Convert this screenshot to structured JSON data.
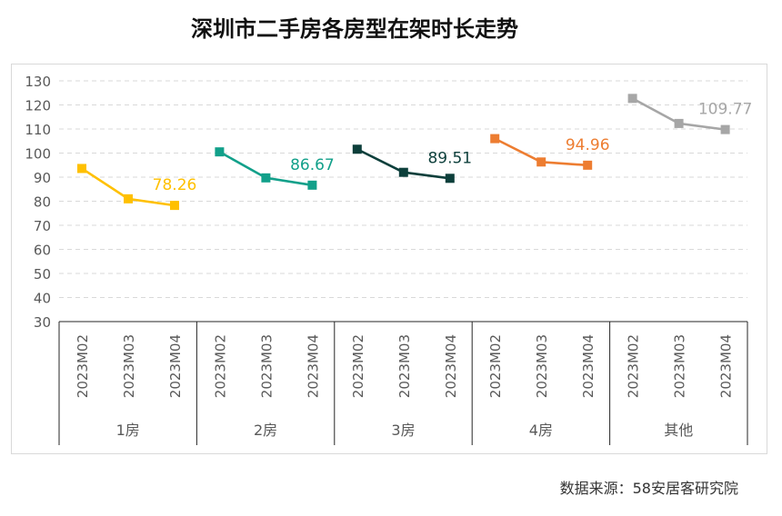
{
  "title": "深圳市二手房各房型在架时长走势",
  "source": "数据来源：58安居客研究院",
  "chart_data": {
    "type": "line",
    "title": "深圳市二手房各房型在架时长走势",
    "ylim": [
      30,
      130
    ],
    "yticks": [
      30,
      40,
      50,
      60,
      70,
      80,
      90,
      100,
      110,
      120,
      130
    ],
    "grid": true,
    "x_months": [
      "2023M02",
      "2023M03",
      "2023M04"
    ],
    "groups": [
      {
        "name": "1房",
        "color": "#FFC000",
        "values": [
          93.6,
          81.0,
          78.26
        ],
        "end_label": "78.26"
      },
      {
        "name": "2房",
        "color": "#12A08A",
        "values": [
          100.5,
          89.7,
          86.67
        ],
        "end_label": "86.67"
      },
      {
        "name": "3房",
        "color": "#0D3F3B",
        "values": [
          101.6,
          92.0,
          89.51
        ],
        "end_label": "89.51"
      },
      {
        "name": "4房",
        "color": "#ED7D31",
        "values": [
          106.0,
          96.3,
          94.96
        ],
        "end_label": "94.96"
      },
      {
        "name": "其他",
        "color": "#A6A6A6",
        "values": [
          122.7,
          112.3,
          109.77
        ],
        "end_label": "109.77"
      }
    ]
  }
}
